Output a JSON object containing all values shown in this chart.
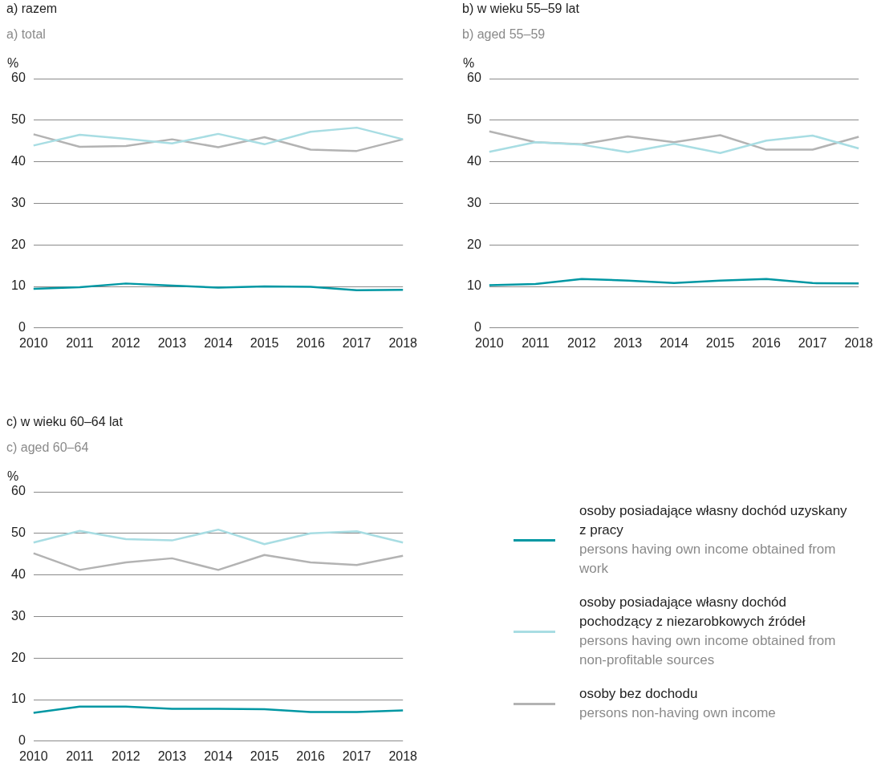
{
  "chart_data": [
    {
      "type": "line",
      "title": "a) razem",
      "subtitle": "a) total",
      "ylabel": "%",
      "categories": [
        "2010",
        "2011",
        "2012",
        "2013",
        "2014",
        "2015",
        "2016",
        "2017",
        "2018"
      ],
      "ylim": [
        0,
        60
      ],
      "yticks": [
        0,
        10,
        20,
        30,
        40,
        50,
        60
      ],
      "grid": "y",
      "series": [
        {
          "color": "#0097a3",
          "values": [
            9.4,
            9.8,
            10.7,
            10.2,
            9.7,
            10.0,
            9.9,
            9.1,
            9.2
          ]
        },
        {
          "color": "#a8dde3",
          "values": [
            43.9,
            46.5,
            45.5,
            44.4,
            46.7,
            44.2,
            47.2,
            48.2,
            45.4
          ]
        },
        {
          "color": "#b3b3b3",
          "values": [
            46.6,
            43.6,
            43.8,
            45.4,
            43.5,
            45.9,
            42.9,
            42.6,
            45.4
          ]
        }
      ]
    },
    {
      "type": "line",
      "title": "b) w wieku 55–59 lat",
      "subtitle": "b) aged 55–59",
      "ylabel": "%",
      "categories": [
        "2010",
        "2011",
        "2012",
        "2013",
        "2014",
        "2015",
        "2016",
        "2017",
        "2018"
      ],
      "ylim": [
        0,
        60
      ],
      "yticks": [
        0,
        10,
        20,
        30,
        40,
        50,
        60
      ],
      "grid": "y",
      "series": [
        {
          "color": "#0097a3",
          "values": [
            10.3,
            10.6,
            11.8,
            11.4,
            10.8,
            11.4,
            11.8,
            10.8,
            10.7
          ]
        },
        {
          "color": "#a8dde3",
          "values": [
            42.4,
            44.7,
            44.1,
            42.3,
            44.3,
            42.1,
            45.1,
            46.3,
            43.2
          ]
        },
        {
          "color": "#b3b3b3",
          "values": [
            47.3,
            44.7,
            44.2,
            46.1,
            44.7,
            46.4,
            42.9,
            42.9,
            46.0
          ]
        }
      ]
    },
    {
      "type": "line",
      "title": "c) w wieku 60–64 lat",
      "subtitle": "c) aged 60–64",
      "ylabel": "%",
      "categories": [
        "2010",
        "2011",
        "2012",
        "2013",
        "2014",
        "2015",
        "2016",
        "2017",
        "2018"
      ],
      "ylim": [
        0,
        60
      ],
      "yticks": [
        0,
        10,
        20,
        30,
        40,
        50,
        60
      ],
      "grid": "y",
      "legend": "right",
      "series": [
        {
          "name": "osoby posiadające własny dochód uzyskany z pracy\npersons having own income obtained from work",
          "color": "#0097a3",
          "values": [
            6.8,
            8.3,
            8.3,
            7.8,
            7.8,
            7.7,
            7.0,
            7.0,
            7.4
          ]
        },
        {
          "name": "osoby posiadające własny dochód pochodzący z niezarobkowych źródeł\npersons having own income obtained from non-profitable sources",
          "color": "#a8dde3",
          "values": [
            47.8,
            50.6,
            48.6,
            48.3,
            50.9,
            47.4,
            50.0,
            50.5,
            47.8
          ]
        },
        {
          "name": "osoby bez dochodu\npersons non-having own income",
          "color": "#b3b3b3",
          "values": [
            45.2,
            41.2,
            43.0,
            44.0,
            41.2,
            44.8,
            43.0,
            42.4,
            44.6
          ]
        }
      ]
    }
  ]
}
